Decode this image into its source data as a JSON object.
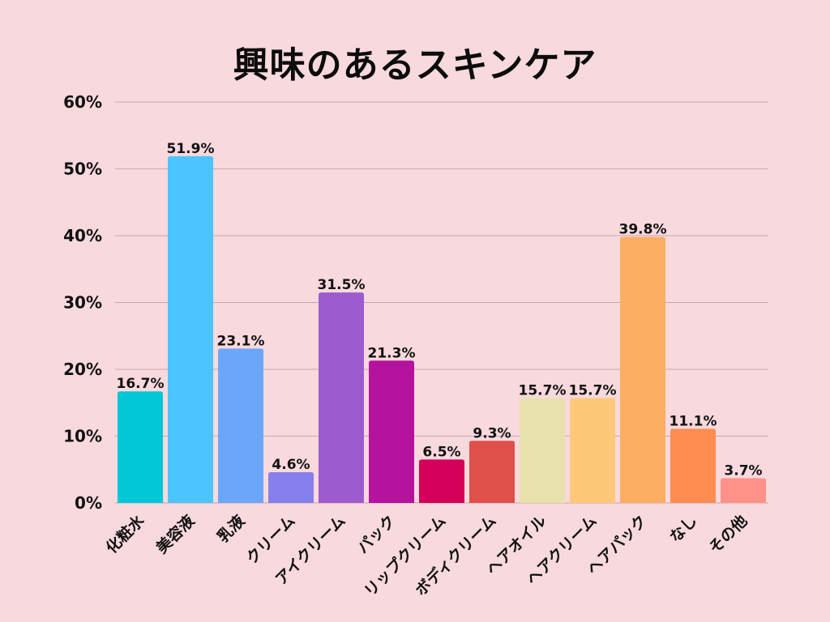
{
  "chart_data": {
    "type": "bar",
    "title": "興味のあるスキンケア",
    "xlabel": "",
    "ylabel": "",
    "ylim": [
      0,
      60
    ],
    "y_ticks": [
      "0%",
      "10%",
      "20%",
      "30%",
      "40%",
      "50%",
      "60%"
    ],
    "grid": true,
    "legend": "none",
    "categories": [
      "化粧水",
      "美容液",
      "乳液",
      "クリーム",
      "アイクリーム",
      "パック",
      "リップクリーム",
      "ボディクリーム",
      "ヘアオイル",
      "ヘアクリーム",
      "ヘアパック",
      "なし",
      "その他"
    ],
    "values": [
      16.7,
      51.9,
      23.1,
      4.6,
      31.5,
      21.3,
      6.5,
      9.3,
      15.7,
      15.7,
      39.8,
      11.1,
      3.7
    ],
    "value_labels": [
      "16.7%",
      "51.9%",
      "23.1%",
      "4.6%",
      "31.5%",
      "21.3%",
      "6.5%",
      "9.3%",
      "15.7%",
      "15.7%",
      "39.8%",
      "11.1%",
      "3.7%"
    ],
    "colors": [
      "#00c8d7",
      "#4bc4ff",
      "#6ba6fa",
      "#8580eb",
      "#9d5bcf",
      "#b5129e",
      "#d4005a",
      "#e0504a",
      "#e9e1ac",
      "#fdc979",
      "#fdae62",
      "#ff8d52",
      "#ff9189"
    ],
    "background": "#f8d9dd",
    "grid_color": "#c7a7ad"
  }
}
